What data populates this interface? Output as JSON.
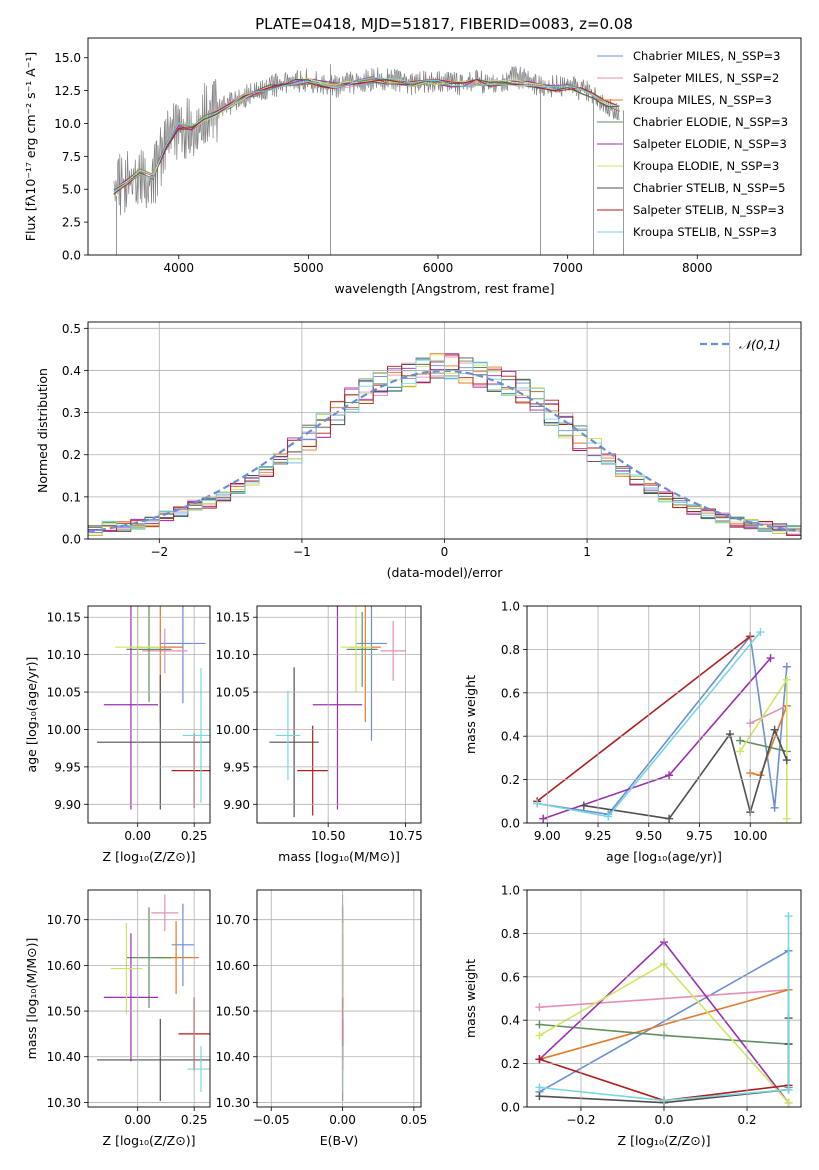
{
  "figure_title": "PLATE=0418, MJD=51817, FIBERID=0083, z=0.08",
  "colors": [
    "#6a8fd4",
    "#e58fb6",
    "#e07c2e",
    "#5f8f5f",
    "#9b2fb0",
    "#cfe862",
    "#505050",
    "#b01e1e",
    "#78d8e0"
  ],
  "chart_data": [
    {
      "type": "line",
      "id": "spectrum",
      "title": "PLATE=0418, MJD=51817, FIBERID=0083, z=0.08",
      "xlabel": "wavelength [Angstrom, rest frame]",
      "ylabel": "Flux [fλ10⁻¹⁷ erg cm⁻² s⁻¹ A⁻¹]",
      "xlim": [
        3300,
        8800
      ],
      "ylim": [
        0,
        16.5
      ],
      "xticks": [
        4000,
        5000,
        6000,
        7000,
        8000
      ],
      "yticks": [
        0.0,
        2.5,
        5.0,
        7.5,
        10.0,
        12.5,
        15.0
      ],
      "data_color": "#808080",
      "x": [
        3500,
        3600,
        3700,
        3800,
        3900,
        4000,
        4100,
        4200,
        4300,
        4400,
        4500,
        4600,
        4700,
        4800,
        4900,
        5000,
        5100,
        5200,
        5300,
        5400,
        5500,
        5600,
        5700,
        5800,
        5900,
        6000,
        6100,
        6200,
        6300,
        6400,
        6500,
        6600,
        6700,
        6800,
        6900,
        7000,
        7100,
        7200,
        7300,
        7400
      ],
      "data_flux": [
        4.5,
        6.0,
        6.5,
        5.5,
        8.5,
        10.0,
        9.5,
        10.5,
        11.0,
        11.5,
        12.0,
        12.5,
        12.8,
        13.0,
        13.2,
        13.3,
        13.0,
        12.8,
        13.0,
        13.2,
        13.4,
        13.3,
        13.2,
        13.0,
        13.2,
        13.3,
        13.1,
        13.0,
        13.2,
        13.1,
        13.2,
        13.6,
        13.2,
        12.9,
        12.8,
        12.9,
        12.6,
        12.2,
        11.4,
        11.0
      ],
      "model_flux": [
        4.8,
        5.5,
        6.3,
        6.0,
        8.2,
        9.8,
        9.7,
        10.4,
        10.8,
        11.4,
        12.0,
        12.3,
        12.7,
        12.9,
        13.1,
        13.2,
        13.0,
        12.9,
        13.0,
        13.1,
        13.3,
        13.2,
        13.1,
        13.0,
        13.1,
        13.2,
        13.0,
        13.0,
        13.1,
        13.0,
        13.1,
        13.1,
        13.0,
        12.8,
        12.7,
        12.8,
        12.5,
        12.1,
        11.5,
        11.1
      ],
      "series": [
        {
          "name": "Chabrier MILES, N_SSP=3",
          "color": "#6a8fd4"
        },
        {
          "name": "Salpeter MILES, N_SSP=2",
          "color": "#e58fb6"
        },
        {
          "name": "Kroupa MILES, N_SSP=3",
          "color": "#e07c2e"
        },
        {
          "name": "Chabrier ELODIE, N_SSP=3",
          "color": "#5f8f5f"
        },
        {
          "name": "Salpeter ELODIE, N_SSP=3",
          "color": "#9b2fb0"
        },
        {
          "name": "Kroupa ELODIE, N_SSP=3",
          "color": "#cfe862"
        },
        {
          "name": "Chabrier STELIB, N_SSP=5",
          "color": "#505050"
        },
        {
          "name": "Salpeter STELIB, N_SSP=3",
          "color": "#b01e1e"
        },
        {
          "name": "Kroupa STELIB, N_SSP=3",
          "color": "#78d8e0"
        }
      ],
      "legend": "top-right"
    },
    {
      "type": "histogram",
      "id": "residuals",
      "xlabel": "(data-model)/error",
      "ylabel": "Normed distribution",
      "xlim": [
        -2.5,
        2.5
      ],
      "ylim": [
        0,
        0.515
      ],
      "xticks": [
        -2,
        -1,
        0,
        1,
        2
      ],
      "yticks": [
        0.0,
        0.1,
        0.2,
        0.3,
        0.4,
        0.5
      ],
      "grid": true,
      "bin_edges": [
        -2.5,
        -2.4,
        -2.3,
        -2.2,
        -2.1,
        -2.0,
        -1.9,
        -1.8,
        -1.7,
        -1.6,
        -1.5,
        -1.4,
        -1.3,
        -1.2,
        -1.1,
        -1.0,
        -0.9,
        -0.8,
        -0.7,
        -0.6,
        -0.5,
        -0.4,
        -0.3,
        -0.2,
        -0.1,
        0.0,
        0.1,
        0.2,
        0.3,
        0.4,
        0.5,
        0.6,
        0.7,
        0.8,
        0.9,
        1.0,
        1.1,
        1.2,
        1.3,
        1.4,
        1.5,
        1.6,
        1.7,
        1.8,
        1.9,
        2.0,
        2.1,
        2.2,
        2.3,
        2.4,
        2.5
      ],
      "densities": [
        0.02,
        0.03,
        0.03,
        0.035,
        0.04,
        0.055,
        0.065,
        0.08,
        0.085,
        0.1,
        0.12,
        0.14,
        0.16,
        0.19,
        0.21,
        0.24,
        0.27,
        0.3,
        0.33,
        0.35,
        0.37,
        0.38,
        0.39,
        0.4,
        0.41,
        0.41,
        0.4,
        0.39,
        0.38,
        0.37,
        0.35,
        0.33,
        0.3,
        0.27,
        0.24,
        0.21,
        0.19,
        0.16,
        0.14,
        0.12,
        0.1,
        0.085,
        0.07,
        0.06,
        0.05,
        0.04,
        0.035,
        0.03,
        0.025,
        0.02
      ],
      "reference_curve": {
        "name": "𝒩(0,1)",
        "mean": 0,
        "sigma": 1,
        "color": "#6a8fd4",
        "style": "dashed"
      },
      "legend": "top-right"
    },
    {
      "type": "scatter",
      "id": "age_vs_Z",
      "xlabel": "Z [log₁₀(Z/Z⊙)]",
      "ylabel": "age  [log₁₀(age/yr)]",
      "xlim": [
        -0.22,
        0.32
      ],
      "ylim": [
        9.875,
        10.165
      ],
      "xticks": [
        0.0,
        0.25
      ],
      "xticklabels": [
        "0.00",
        "0.25"
      ],
      "yticks": [
        9.9,
        9.95,
        10.0,
        10.05,
        10.1,
        10.15
      ],
      "points": [
        {
          "x": 0.2,
          "y": 10.115,
          "xerr": 0.1,
          "yerr": 0.08,
          "color": "#6a8fd4"
        },
        {
          "x": 0.12,
          "y": 10.105,
          "xerr": 0.1,
          "yerr": 0.03,
          "color": "#e58fb6"
        },
        {
          "x": 0.1,
          "y": 10.11,
          "xerr": 0.1,
          "yerr": 0.1,
          "color": "#e07c2e"
        },
        {
          "x": 0.05,
          "y": 10.107,
          "xerr": 0.1,
          "yerr": 0.07,
          "color": "#5f8f5f"
        },
        {
          "x": -0.03,
          "y": 10.033,
          "xerr": 0.12,
          "yerr": 0.14,
          "color": "#9b2fb0"
        },
        {
          "x": 0.0,
          "y": 10.11,
          "xerr": 0.1,
          "yerr": 0.06,
          "color": "#cfe862"
        },
        {
          "x": 0.1,
          "y": 9.983,
          "xerr": 0.28,
          "yerr": 0.09,
          "color": "#505050"
        },
        {
          "x": 0.25,
          "y": 9.945,
          "xerr": 0.1,
          "yerr": 0.05,
          "color": "#b01e1e"
        },
        {
          "x": 0.28,
          "y": 9.992,
          "xerr": 0.08,
          "yerr": 0.09,
          "color": "#78d8e0"
        }
      ]
    },
    {
      "type": "scatter",
      "id": "age_vs_mass",
      "xlabel": "mass [log₁₀(M/M⊙)]",
      "ylabel": "",
      "xlim": [
        10.27,
        10.8
      ],
      "ylim": [
        9.875,
        10.165
      ],
      "xticks": [
        10.5,
        10.75
      ],
      "xticklabels": [
        "10.50",
        "10.75"
      ],
      "yticks": [
        9.9,
        9.95,
        10.0,
        10.05,
        10.1,
        10.15
      ],
      "points": [
        {
          "x": 10.64,
          "y": 10.115,
          "xerr": 0.05,
          "yerr": 0.13,
          "color": "#6a8fd4"
        },
        {
          "x": 10.71,
          "y": 10.105,
          "xerr": 0.04,
          "yerr": 0.04,
          "color": "#e58fb6"
        },
        {
          "x": 10.62,
          "y": 10.11,
          "xerr": 0.05,
          "yerr": 0.1,
          "color": "#e07c2e"
        },
        {
          "x": 10.61,
          "y": 10.107,
          "xerr": 0.05,
          "yerr": 0.05,
          "color": "#5f8f5f"
        },
        {
          "x": 10.53,
          "y": 10.033,
          "xerr": 0.08,
          "yerr": 0.14,
          "color": "#9b2fb0"
        },
        {
          "x": 10.59,
          "y": 10.11,
          "xerr": 0.05,
          "yerr": 0.06,
          "color": "#cfe862"
        },
        {
          "x": 10.39,
          "y": 9.983,
          "xerr": 0.08,
          "yerr": 0.1,
          "color": "#505050"
        },
        {
          "x": 10.45,
          "y": 9.945,
          "xerr": 0.05,
          "yerr": 0.06,
          "color": "#b01e1e"
        },
        {
          "x": 10.37,
          "y": 9.992,
          "xerr": 0.04,
          "yerr": 0.06,
          "color": "#78d8e0"
        }
      ]
    },
    {
      "type": "line",
      "id": "massweight_vs_age",
      "xlabel": "age  [log₁₀(age/yr)]",
      "ylabel": "mass weight",
      "xlim": [
        8.9,
        10.25
      ],
      "ylim": [
        0,
        1
      ],
      "xticks": [
        9.0,
        9.25,
        9.5,
        9.75,
        10.0
      ],
      "xticklabels": [
        "9.00",
        "9.25",
        "9.50",
        "9.75",
        "10.00"
      ],
      "yticks": [
        0.0,
        0.2,
        0.4,
        0.6,
        0.8,
        1.0
      ],
      "series": [
        {
          "color": "#6a8fd4",
          "x": [
            8.95,
            9.3,
            10.0,
            10.12,
            10.18
          ],
          "y": [
            0.09,
            0.04,
            0.86,
            0.07,
            0.72
          ]
        },
        {
          "color": "#e58fb6",
          "x": [
            10.0,
            10.18
          ],
          "y": [
            0.46,
            0.54
          ]
        },
        {
          "color": "#e07c2e",
          "x": [
            10.0,
            10.05,
            10.18
          ],
          "y": [
            0.23,
            0.22,
            0.54
          ]
        },
        {
          "color": "#5f8f5f",
          "x": [
            9.95,
            10.18
          ],
          "y": [
            0.38,
            0.33
          ]
        },
        {
          "color": "#9b2fb0",
          "x": [
            8.98,
            9.6,
            10.1
          ],
          "y": [
            0.02,
            0.22,
            0.76
          ]
        },
        {
          "color": "#cfe862",
          "x": [
            9.95,
            10.18,
            10.18
          ],
          "y": [
            0.33,
            0.66,
            0.02
          ]
        },
        {
          "color": "#505050",
          "x": [
            9.18,
            9.6,
            9.9,
            10.0,
            10.12,
            10.18
          ],
          "y": [
            0.08,
            0.02,
            0.41,
            0.05,
            0.43,
            0.29
          ]
        },
        {
          "color": "#b01e1e",
          "x": [
            8.95,
            10.0
          ],
          "y": [
            0.1,
            0.86
          ]
        },
        {
          "color": "#78d8e0",
          "x": [
            8.95,
            9.3,
            10.05
          ],
          "y": [
            0.09,
            0.03,
            0.88
          ]
        }
      ]
    },
    {
      "type": "scatter",
      "id": "mass_vs_Z",
      "xlabel": "Z [log₁₀(Z/Z⊙)]",
      "ylabel": "mass [log₁₀(M/M⊙)]",
      "xlim": [
        -0.22,
        0.32
      ],
      "ylim": [
        10.29,
        10.765
      ],
      "xticks": [
        0.0,
        0.25
      ],
      "xticklabels": [
        "0.00",
        "0.25"
      ],
      "yticks": [
        10.3,
        10.4,
        10.5,
        10.6,
        10.7
      ],
      "points": [
        {
          "x": 0.2,
          "y": 10.645,
          "xerr": 0.05,
          "yerr": 0.09,
          "color": "#6a8fd4"
        },
        {
          "x": 0.12,
          "y": 10.715,
          "xerr": 0.06,
          "yerr": 0.04,
          "color": "#e58fb6"
        },
        {
          "x": 0.17,
          "y": 10.617,
          "xerr": 0.1,
          "yerr": 0.08,
          "color": "#e07c2e"
        },
        {
          "x": 0.05,
          "y": 10.617,
          "xerr": 0.1,
          "yerr": 0.11,
          "color": "#5f8f5f"
        },
        {
          "x": -0.03,
          "y": 10.53,
          "xerr": 0.12,
          "yerr": 0.14,
          "color": "#9b2fb0"
        },
        {
          "x": -0.05,
          "y": 10.593,
          "xerr": 0.07,
          "yerr": 0.1,
          "color": "#cfe862"
        },
        {
          "x": 0.1,
          "y": 10.393,
          "xerr": 0.28,
          "yerr": 0.09,
          "color": "#505050"
        },
        {
          "x": 0.25,
          "y": 10.45,
          "xerr": 0.07,
          "yerr": 0.08,
          "color": "#b01e1e"
        },
        {
          "x": 0.28,
          "y": 10.373,
          "xerr": 0.06,
          "yerr": 0.05,
          "color": "#78d8e0"
        }
      ]
    },
    {
      "type": "scatter",
      "id": "mass_vs_EBV",
      "xlabel": "E(B-V)",
      "ylabel": "",
      "xlim": [
        -0.06,
        0.055
      ],
      "ylim": [
        10.29,
        10.765
      ],
      "xticks": [
        -0.05,
        0.0,
        0.05
      ],
      "xticklabels": [
        "−0.05",
        "0.00",
        "0.05"
      ],
      "yticks": [
        10.3,
        10.4,
        10.5,
        10.6,
        10.7
      ],
      "points": [
        {
          "x": 0.0,
          "y": 10.645,
          "xerr": 0,
          "yerr": 0.09,
          "color": "#6a8fd4"
        },
        {
          "x": 0.0,
          "y": 10.715,
          "xerr": 0,
          "yerr": 0.04,
          "color": "#e58fb6"
        },
        {
          "x": 0.0,
          "y": 10.617,
          "xerr": 0,
          "yerr": 0.08,
          "color": "#e07c2e"
        },
        {
          "x": 0.0,
          "y": 10.617,
          "xerr": 0,
          "yerr": 0.11,
          "color": "#5f8f5f"
        },
        {
          "x": 0.0,
          "y": 10.53,
          "xerr": 0,
          "yerr": 0.14,
          "color": "#9b2fb0"
        },
        {
          "x": 0.0,
          "y": 10.593,
          "xerr": 0,
          "yerr": 0.1,
          "color": "#cfe862"
        },
        {
          "x": 0.0,
          "y": 10.393,
          "xerr": 0,
          "yerr": 0.09,
          "color": "#505050"
        },
        {
          "x": 0.0,
          "y": 10.45,
          "xerr": 0,
          "yerr": 0.08,
          "color": "#b01e1e"
        },
        {
          "x": 0.0,
          "y": 10.373,
          "xerr": 0,
          "yerr": 0.05,
          "color": "#78d8e0"
        }
      ]
    },
    {
      "type": "line",
      "id": "massweight_vs_Z",
      "xlabel": "Z [log₁₀(Z/Z⊙)]",
      "ylabel": "mass weight",
      "xlim": [
        -0.33,
        0.33
      ],
      "ylim": [
        0,
        1
      ],
      "xticks": [
        -0.2,
        0.0,
        0.2
      ],
      "xticklabels": [
        "−0.2",
        "0.0",
        "0.2"
      ],
      "yticks": [
        0.0,
        0.2,
        0.4,
        0.6,
        0.8,
        1.0
      ],
      "series": [
        {
          "color": "#6a8fd4",
          "x": [
            -0.3,
            0.3,
            0.3
          ],
          "y": [
            0.07,
            0.72,
            0.09
          ]
        },
        {
          "color": "#e58fb6",
          "x": [
            -0.3,
            0.3
          ],
          "y": [
            0.46,
            0.54
          ]
        },
        {
          "color": "#e07c2e",
          "x": [
            -0.3,
            0.3
          ],
          "y": [
            0.22,
            0.54
          ]
        },
        {
          "color": "#5f8f5f",
          "x": [
            -0.3,
            0.0,
            0.3
          ],
          "y": [
            0.38,
            0.33,
            0.29
          ]
        },
        {
          "color": "#9b2fb0",
          "x": [
            -0.3,
            0.0,
            0.3
          ],
          "y": [
            0.22,
            0.76,
            0.02
          ]
        },
        {
          "color": "#cfe862",
          "x": [
            -0.3,
            0.0,
            0.3
          ],
          "y": [
            0.33,
            0.66,
            0.02
          ]
        },
        {
          "color": "#505050",
          "x": [
            -0.3,
            0.0,
            0.3,
            0.3,
            0.3
          ],
          "y": [
            0.05,
            0.02,
            0.08,
            0.29,
            0.41
          ]
        },
        {
          "color": "#b01e1e",
          "x": [
            -0.3,
            0.0,
            0.3
          ],
          "y": [
            0.22,
            0.03,
            0.1
          ]
        },
        {
          "color": "#78d8e0",
          "x": [
            -0.3,
            0.0,
            0.3,
            0.3
          ],
          "y": [
            0.09,
            0.03,
            0.08,
            0.88
          ]
        }
      ]
    }
  ]
}
